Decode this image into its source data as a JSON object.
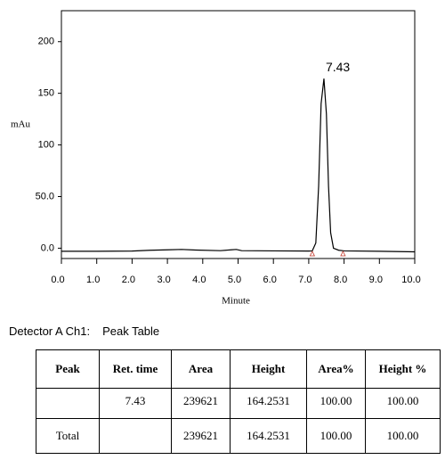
{
  "chart_data": {
    "type": "line",
    "y_label": "mAu",
    "x_label": "Minute",
    "annotation": "7.43",
    "x": [
      0,
      1,
      2,
      2.5,
      3.0,
      3.4,
      3.8,
      4.5,
      4.8,
      4.95,
      5.1,
      6,
      7.0,
      7.1,
      7.2,
      7.28,
      7.35,
      7.43,
      7.5,
      7.56,
      7.62,
      7.7,
      7.85,
      8.0,
      9,
      10
    ],
    "series": [
      {
        "name": "Detector A Ch1",
        "color": "#000000",
        "values": [
          -3,
          -3,
          -2.8,
          -2,
          -1.6,
          -1.2,
          -1.8,
          -2.4,
          -1.6,
          -1.2,
          -2.4,
          -2.6,
          -2.8,
          -2.6,
          5,
          60,
          140,
          164.2531,
          130,
          60,
          15,
          0,
          -2,
          -2.6,
          -3,
          -3.5
        ]
      }
    ],
    "peak_bounds": [
      7.1,
      7.97
    ],
    "peak_bounds_color": "#c0392b",
    "xlim": [
      0,
      10
    ],
    "ylim": [
      -10,
      230
    ],
    "xticks": [
      {
        "value": 0,
        "label": "0.0"
      },
      {
        "value": 1,
        "label": "1.0"
      },
      {
        "value": 2,
        "label": "2.0"
      },
      {
        "value": 3,
        "label": "3.0"
      },
      {
        "value": 4,
        "label": "4.0"
      },
      {
        "value": 5,
        "label": "5.0"
      },
      {
        "value": 6,
        "label": "6.0"
      },
      {
        "value": 7,
        "label": "7.0"
      },
      {
        "value": 8,
        "label": "8.0"
      },
      {
        "value": 9,
        "label": "9.0"
      },
      {
        "value": 10,
        "label": "10.0"
      }
    ],
    "yticks": [
      {
        "value": 0,
        "label": "0.0"
      },
      {
        "value": 50,
        "label": "50.0"
      },
      100,
      150,
      200
    ]
  },
  "table": {
    "caption": [
      "Detector A Ch1:",
      "Peak Table"
    ],
    "header": [
      "Peak",
      "Ret. time",
      "Area",
      "Height",
      "Area%",
      "Height %"
    ],
    "rows": [
      [
        null,
        "7.43",
        "239621",
        "164.2531",
        "100.00",
        "100.00"
      ],
      [
        "Total",
        null,
        "239621",
        "164.2531",
        "100.00",
        "100.00"
      ]
    ]
  }
}
